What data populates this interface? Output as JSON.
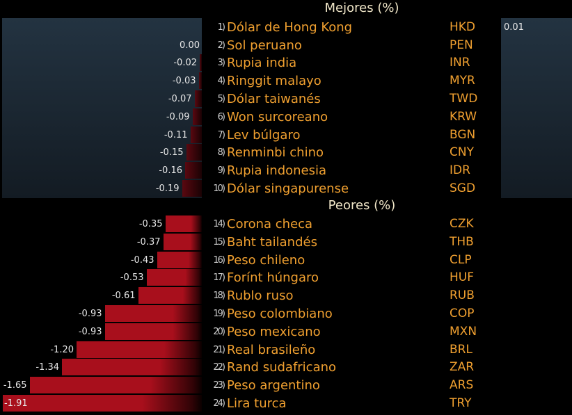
{
  "chart_data": {
    "type": "bar",
    "orientation": "horizontal",
    "unit": "%",
    "sections": [
      {
        "title": "Mejores (%)",
        "items": [
          {
            "rank": "1)",
            "name": "Dólar de Hong Kong",
            "code": "HKD",
            "value": 0.01
          },
          {
            "rank": "2)",
            "name": "Sol peruano",
            "code": "PEN",
            "value": 0.0
          },
          {
            "rank": "3)",
            "name": "Rupia india",
            "code": "INR",
            "value": -0.02
          },
          {
            "rank": "4)",
            "name": "Ringgit malayo",
            "code": "MYR",
            "value": -0.03
          },
          {
            "rank": "5)",
            "name": "Dólar taiwanés",
            "code": "TWD",
            "value": -0.07
          },
          {
            "rank": "6)",
            "name": "Won surcoreano",
            "code": "KRW",
            "value": -0.09
          },
          {
            "rank": "7)",
            "name": "Lev búlgaro",
            "code": "BGN",
            "value": -0.11
          },
          {
            "rank": "8)",
            "name": "Renminbi chino",
            "code": "CNY",
            "value": -0.15
          },
          {
            "rank": "9)",
            "name": "Rupia indonesia",
            "code": "IDR",
            "value": -0.16
          },
          {
            "rank": "10)",
            "name": "Dólar singapurense",
            "code": "SGD",
            "value": -0.19
          }
        ]
      },
      {
        "title": "Peores (%)",
        "items": [
          {
            "rank": "14)",
            "name": "Corona checa",
            "code": "CZK",
            "value": -0.35
          },
          {
            "rank": "15)",
            "name": "Baht tailandés",
            "code": "THB",
            "value": -0.37
          },
          {
            "rank": "16)",
            "name": "Peso chileno",
            "code": "CLP",
            "value": -0.43
          },
          {
            "rank": "17)",
            "name": "Forínt húngaro",
            "code": "HUF",
            "value": -0.53
          },
          {
            "rank": "18)",
            "name": "Rublo ruso",
            "code": "RUB",
            "value": -0.61
          },
          {
            "rank": "19)",
            "name": "Peso colombiano",
            "code": "COP",
            "value": -0.93
          },
          {
            "rank": "20)",
            "name": "Peso mexicano",
            "code": "MXN",
            "value": -0.93
          },
          {
            "rank": "21)",
            "name": "Real brasileño",
            "code": "BRL",
            "value": -1.2
          },
          {
            "rank": "22)",
            "name": "Rand sudafricano",
            "code": "ZAR",
            "value": -1.34
          },
          {
            "rank": "23)",
            "name": "Peso argentino",
            "code": "ARS",
            "value": -1.65
          },
          {
            "rank": "24)",
            "name": "Lira turca",
            "code": "TRY",
            "value": -1.91
          }
        ]
      }
    ],
    "colors": {
      "negative": "#a80f1c",
      "label": "#f0a030",
      "header": "#f0e6c8"
    }
  }
}
